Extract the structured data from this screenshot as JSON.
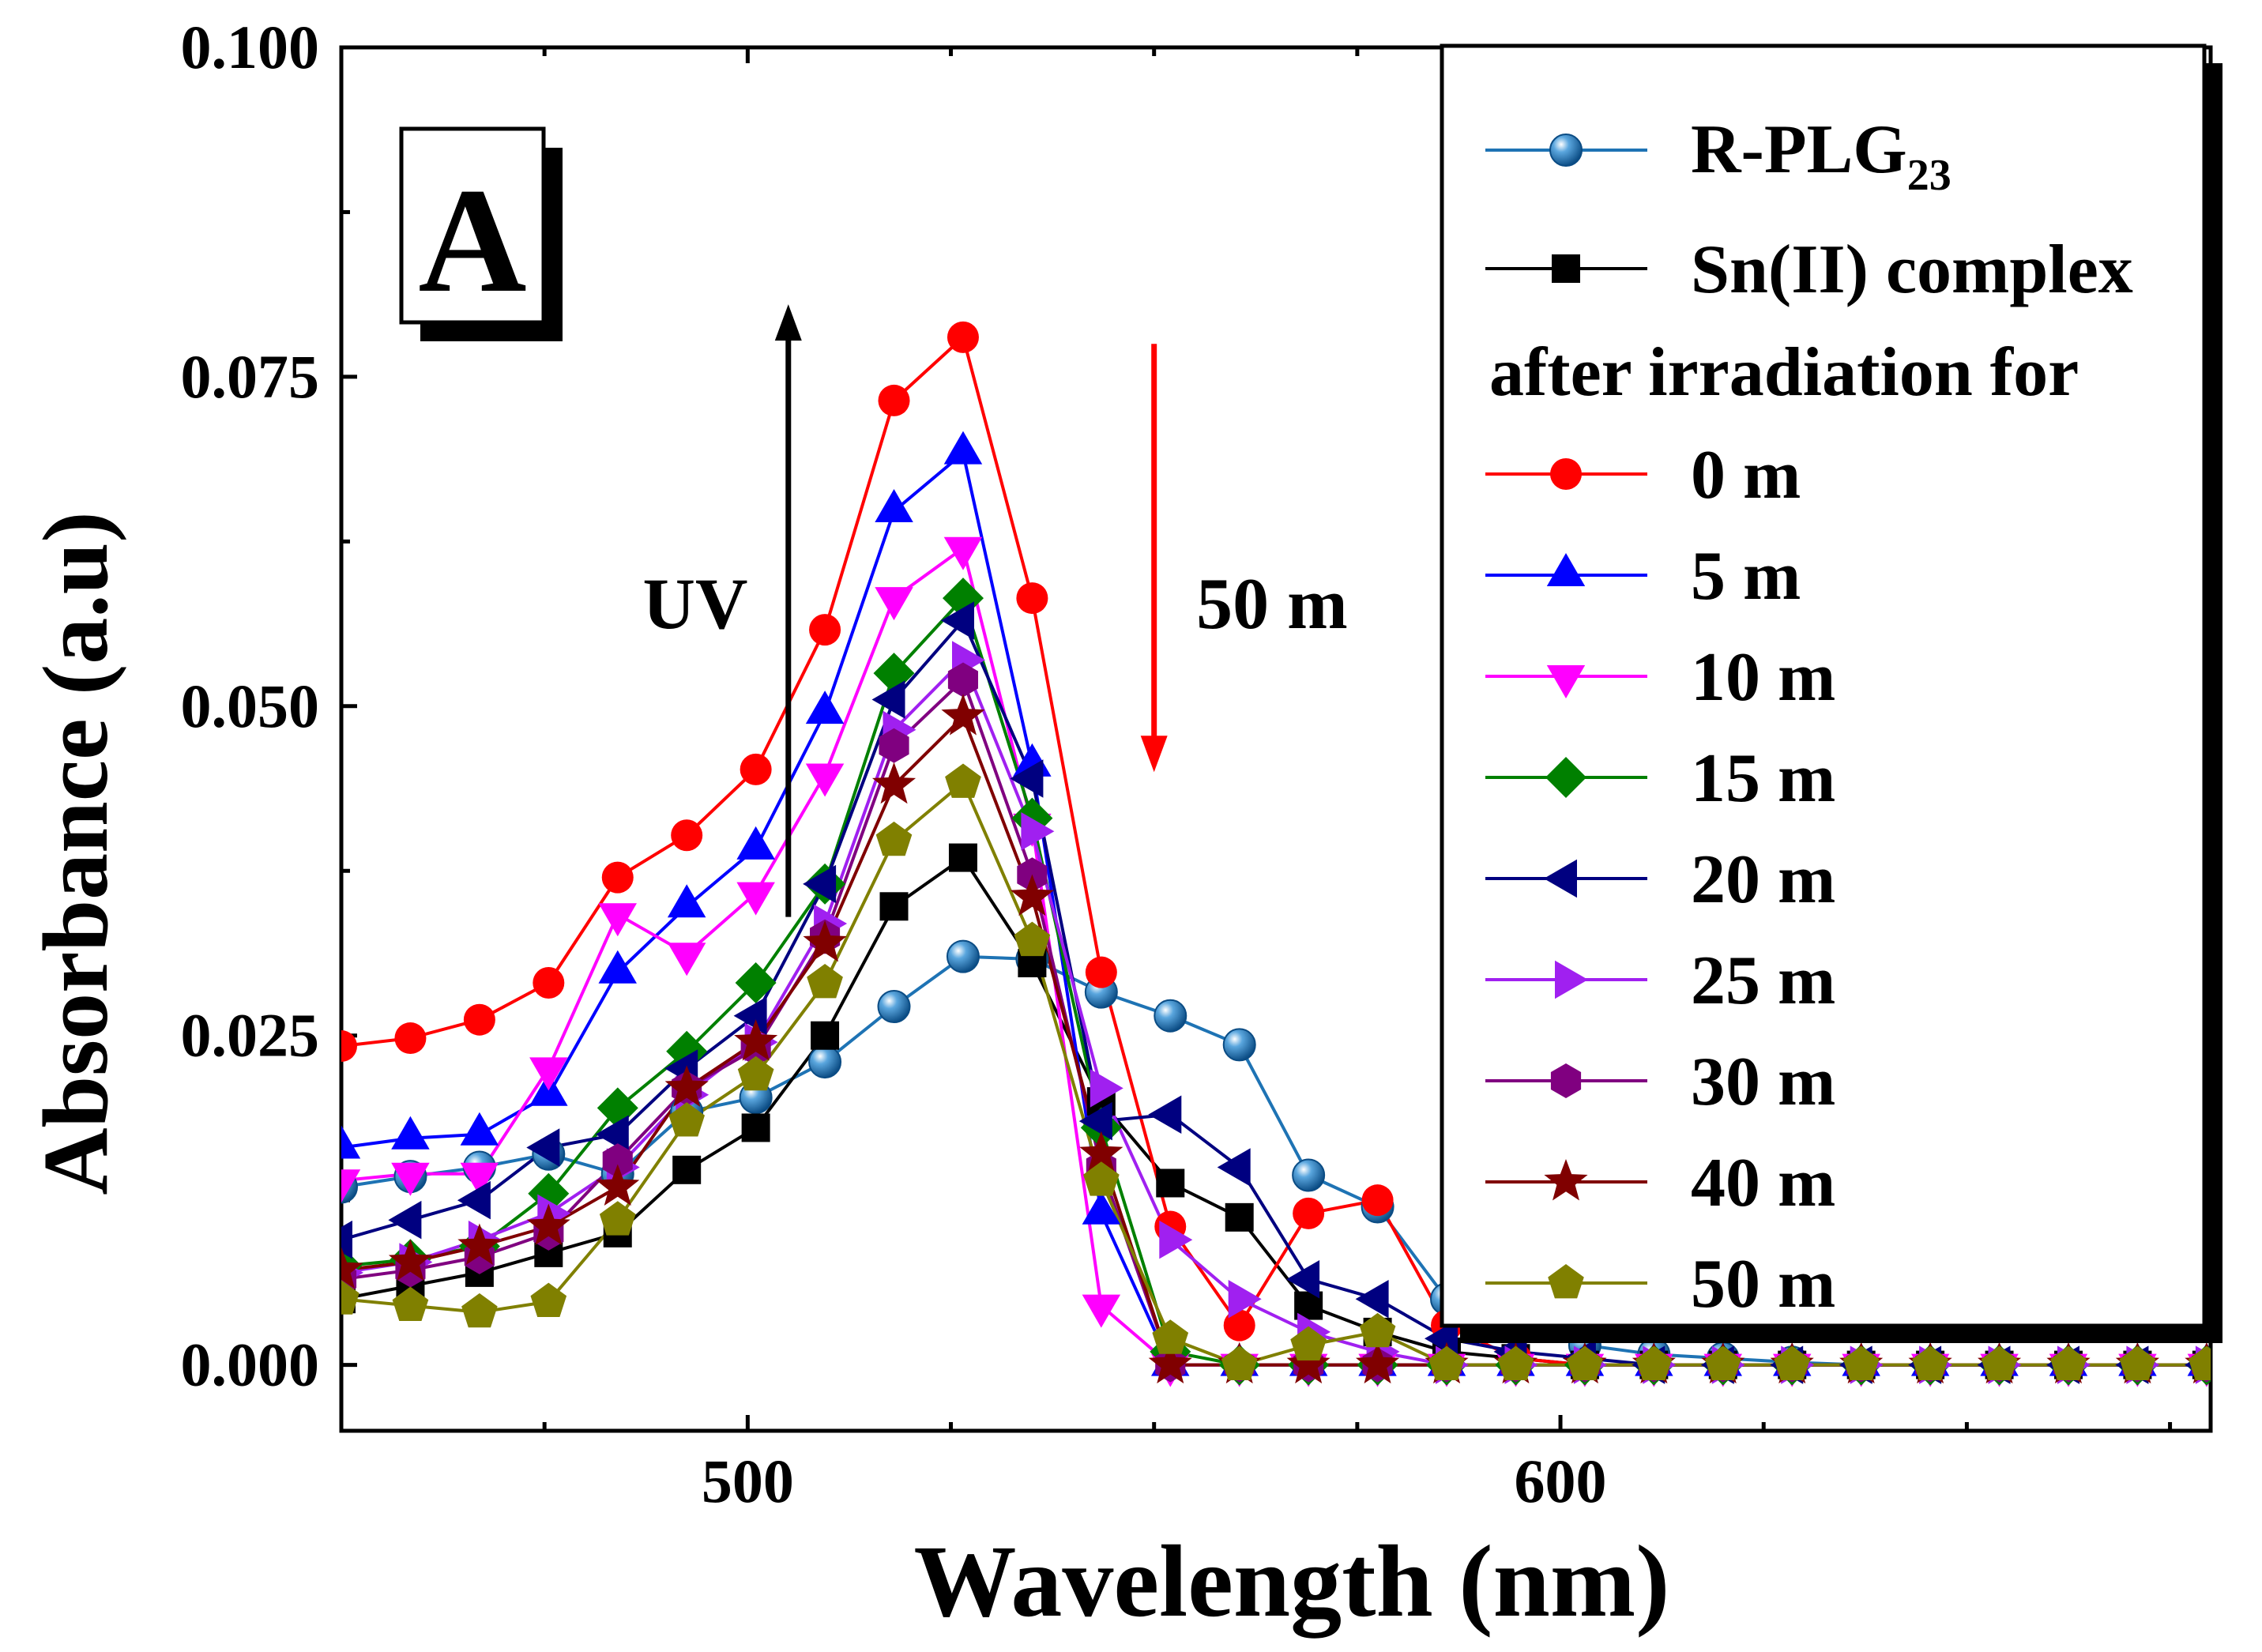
{
  "chart_data": {
    "type": "line",
    "panel_label": "A",
    "xlabel": "Wavelength (nm)",
    "ylabel": "Absorbance (a.u)",
    "xlim": [
      450,
      680
    ],
    "ylim": [
      -0.005,
      0.1
    ],
    "x_ticks": [
      500,
      600
    ],
    "y_ticks": [
      0.0,
      0.025,
      0.05,
      0.075,
      0.1
    ],
    "y_tick_labels": [
      "0.000",
      "0.025",
      "0.050",
      "0.075",
      "0.100"
    ],
    "x_tick_labels": [
      "500",
      "600"
    ],
    "annotations": {
      "uv_label": "UV",
      "decrease_label": "50 m",
      "uv_arrow": {
        "x": 505,
        "from": 0.034,
        "to": 0.0805,
        "color": "#000000"
      },
      "decrease_arrow": {
        "x": 550,
        "from": 0.0775,
        "to": 0.045,
        "color": "#ff0000"
      }
    },
    "legend": {
      "position": "top-right",
      "heading_line1": "Sn(II) complex",
      "heading_line2": "after irradiation for"
    },
    "x": [
      450,
      458.5,
      467,
      475.5,
      484,
      492.5,
      501,
      509.5,
      518,
      526.5,
      535,
      543.5,
      552,
      560.5,
      569,
      577.5,
      586,
      594.5,
      603,
      611.5,
      620,
      628.5,
      637,
      645.5,
      654,
      662.5,
      671,
      679.5
    ],
    "series": [
      {
        "name": "R-PLG",
        "name_sub": "23",
        "color": "#1e73b4",
        "marker": "sphere",
        "values": [
          0.0135,
          0.0143,
          0.015,
          0.016,
          0.0145,
          0.0192,
          0.0203,
          0.023,
          0.0272,
          0.031,
          0.0308,
          0.0283,
          0.0265,
          0.0243,
          0.0144,
          0.012,
          0.005,
          0.003,
          0.0015,
          0.0008,
          0.0005,
          0.0002,
          0.0,
          0.0,
          0.0,
          0.0,
          0.0,
          0.0
        ]
      },
      {
        "name": "Sn(II) complex",
        "color": "#000000",
        "marker": "square",
        "values": [
          0.005,
          0.006,
          0.007,
          0.0085,
          0.01,
          0.0148,
          0.018,
          0.025,
          0.0348,
          0.0385,
          0.0305,
          0.02,
          0.0138,
          0.0112,
          0.0045,
          0.0025,
          0.001,
          0.0005,
          0.0,
          0.0,
          0.0,
          0.0,
          0.0,
          0.0,
          0.0,
          0.0,
          0.0,
          0.0
        ]
      },
      {
        "name": "0 m",
        "color": "#ff0000",
        "marker": "circle",
        "values": [
          0.0242,
          0.0248,
          0.0262,
          0.029,
          0.037,
          0.0402,
          0.0452,
          0.0558,
          0.0732,
          0.078,
          0.0582,
          0.0298,
          0.0105,
          0.003,
          0.0115,
          0.0125,
          0.003,
          0.0005,
          0.0,
          0.0,
          0.0,
          0.0,
          0.0,
          0.0,
          0.0,
          0.0,
          0.0,
          0.0
        ]
      },
      {
        "name": "5 m",
        "color": "#0000ff",
        "marker": "triangle-up",
        "values": [
          0.0165,
          0.0172,
          0.0175,
          0.0205,
          0.0298,
          0.0348,
          0.0392,
          0.0495,
          0.0648,
          0.0692,
          0.0455,
          0.0115,
          0.0,
          0.0,
          0.0,
          0.0,
          0.0,
          0.0,
          0.0,
          0.0,
          0.0,
          0.0,
          0.0,
          0.0,
          0.0,
          0.0,
          0.0,
          0.0
        ]
      },
      {
        "name": "10 m",
        "color": "#ff00ff",
        "marker": "triangle-down",
        "values": [
          0.014,
          0.0145,
          0.0145,
          0.0225,
          0.0342,
          0.0312,
          0.0358,
          0.0448,
          0.0582,
          0.062,
          0.041,
          0.0045,
          0.0,
          0.0,
          0.0,
          0.0,
          0.0,
          0.0,
          0.0,
          0.0,
          0.0,
          0.0,
          0.0,
          0.0,
          0.0,
          0.0,
          0.0,
          0.0
        ]
      },
      {
        "name": "15 m",
        "color": "#008000",
        "marker": "diamond",
        "values": [
          0.0075,
          0.008,
          0.009,
          0.013,
          0.0195,
          0.0238,
          0.029,
          0.0365,
          0.0525,
          0.0582,
          0.0415,
          0.018,
          0.001,
          0.0,
          0.0,
          0.0,
          0.0,
          0.0,
          0.0,
          0.0,
          0.0,
          0.0,
          0.0,
          0.0,
          0.0,
          0.0,
          0.0,
          0.0
        ]
      },
      {
        "name": "20 m",
        "color": "#000080",
        "marker": "triangle-left",
        "values": [
          0.0095,
          0.011,
          0.0125,
          0.0165,
          0.0175,
          0.0225,
          0.0265,
          0.0365,
          0.0505,
          0.0565,
          0.0445,
          0.0185,
          0.019,
          0.015,
          0.0065,
          0.005,
          0.002,
          0.001,
          0.0005,
          0.0,
          0.0,
          0.0,
          0.0,
          0.0,
          0.0,
          0.0,
          0.0,
          0.0
        ]
      },
      {
        "name": "25 m",
        "color": "#a020f0",
        "marker": "triangle-right",
        "values": [
          0.007,
          0.0078,
          0.0095,
          0.0115,
          0.015,
          0.0205,
          0.0245,
          0.0335,
          0.0482,
          0.0535,
          0.0405,
          0.021,
          0.0095,
          0.005,
          0.0025,
          0.001,
          0.0,
          0.0,
          0.0,
          0.0,
          0.0,
          0.0,
          0.0,
          0.0,
          0.0,
          0.0,
          0.0,
          0.0
        ]
      },
      {
        "name": "30 m",
        "color": "#800080",
        "marker": "hexagon",
        "values": [
          0.0065,
          0.0072,
          0.0082,
          0.01,
          0.0155,
          0.021,
          0.024,
          0.0325,
          0.047,
          0.052,
          0.0372,
          0.015,
          0.0,
          0.0,
          0.0,
          0.0,
          0.0,
          0.0,
          0.0,
          0.0,
          0.0,
          0.0,
          0.0,
          0.0,
          0.0,
          0.0,
          0.0,
          0.0
        ]
      },
      {
        "name": "40 m",
        "color": "#800000",
        "marker": "star",
        "values": [
          0.0072,
          0.0078,
          0.009,
          0.0105,
          0.0135,
          0.021,
          0.0245,
          0.032,
          0.044,
          0.0492,
          0.0355,
          0.016,
          0.0,
          0.0,
          0.0,
          0.0,
          0.0,
          0.0,
          0.0,
          0.0,
          0.0,
          0.0,
          0.0,
          0.0,
          0.0,
          0.0,
          0.0,
          0.0
        ]
      },
      {
        "name": "50 m",
        "color": "#808000",
        "marker": "pentagon",
        "values": [
          0.005,
          0.0045,
          0.004,
          0.0048,
          0.011,
          0.0185,
          0.022,
          0.029,
          0.0398,
          0.0442,
          0.0322,
          0.014,
          0.002,
          0.0,
          0.0015,
          0.0025,
          0.0,
          0.0,
          0.0,
          0.0,
          0.0,
          0.0,
          0.0,
          0.0,
          0.0,
          0.0,
          0.0,
          0.0
        ]
      }
    ]
  }
}
